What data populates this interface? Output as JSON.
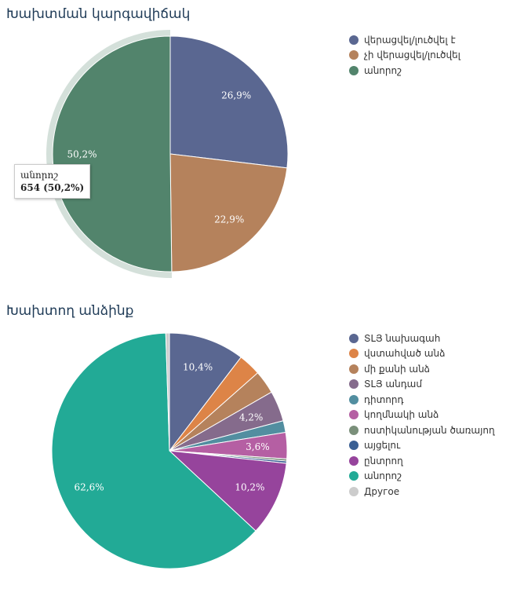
{
  "chart_data": [
    {
      "type": "pie",
      "title": "Խախտման կարգավիճակ",
      "categories": [
        "վերացվել/լուծվել է",
        "չի վերացվել/լուծվել",
        "անորոշ"
      ],
      "values": [
        26.9,
        22.9,
        50.2
      ],
      "labels": [
        "26,9%",
        "22,9%",
        "50,2%"
      ],
      "colors": [
        "#5a6791",
        "#b5825c",
        "#52846c"
      ],
      "legend": "right",
      "highlighted": 2,
      "tooltip": {
        "name": "անորոշ",
        "value": "654 (50,2%)"
      }
    },
    {
      "type": "pie",
      "title": "Խախտող անձինք",
      "categories": [
        "ՏԼՅ նախագահ",
        "վստահված անձ",
        "մի քանի անձ",
        "ՏԼՅ անդամ",
        "դիտորդ",
        "կողմնակի անձ",
        "ոստիկանության ծառայող",
        "այցելու",
        "ընտրող",
        "անորոշ",
        "Другое"
      ],
      "values": [
        10.4,
        3.1,
        3.2,
        4.2,
        1.6,
        3.6,
        0.3,
        0.3,
        10.2,
        62.6,
        0.5
      ],
      "labels": [
        "10,4%",
        "",
        "",
        "4,2%",
        "",
        "3,6%",
        "",
        "",
        "10,2%",
        "62,6%",
        ""
      ],
      "colors": [
        "#5a6791",
        "#dd8447",
        "#b5825c",
        "#856b8c",
        "#528ea0",
        "#b55fa3",
        "#7a8f7a",
        "#3a5f93",
        "#96449c",
        "#22aa96",
        "#cccccc"
      ],
      "legend": "right"
    }
  ]
}
